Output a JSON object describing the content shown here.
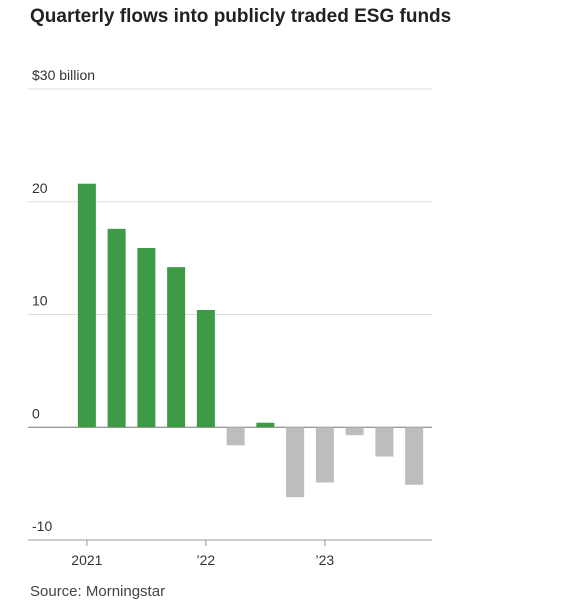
{
  "chart_data": {
    "type": "bar",
    "title": "Quarterly flows into publicly traded ESG funds",
    "source": "Source: Morningstar",
    "categories": [
      "2021",
      null,
      null,
      null,
      "’22",
      null,
      null,
      null,
      "’23",
      null,
      null,
      null
    ],
    "values": [
      21.6,
      17.6,
      15.9,
      14.2,
      10.4,
      -1.6,
      0.4,
      -6.2,
      -4.9,
      -0.7,
      -2.6,
      -5.1
    ],
    "positive_color": "#3d9a46",
    "negative_color": "#bdbdbd",
    "ylim": [
      -10,
      30
    ],
    "yticks": [
      -10,
      0,
      10,
      20,
      {
        "value": 30,
        "label": "$30 billion"
      }
    ],
    "grid": true
  }
}
